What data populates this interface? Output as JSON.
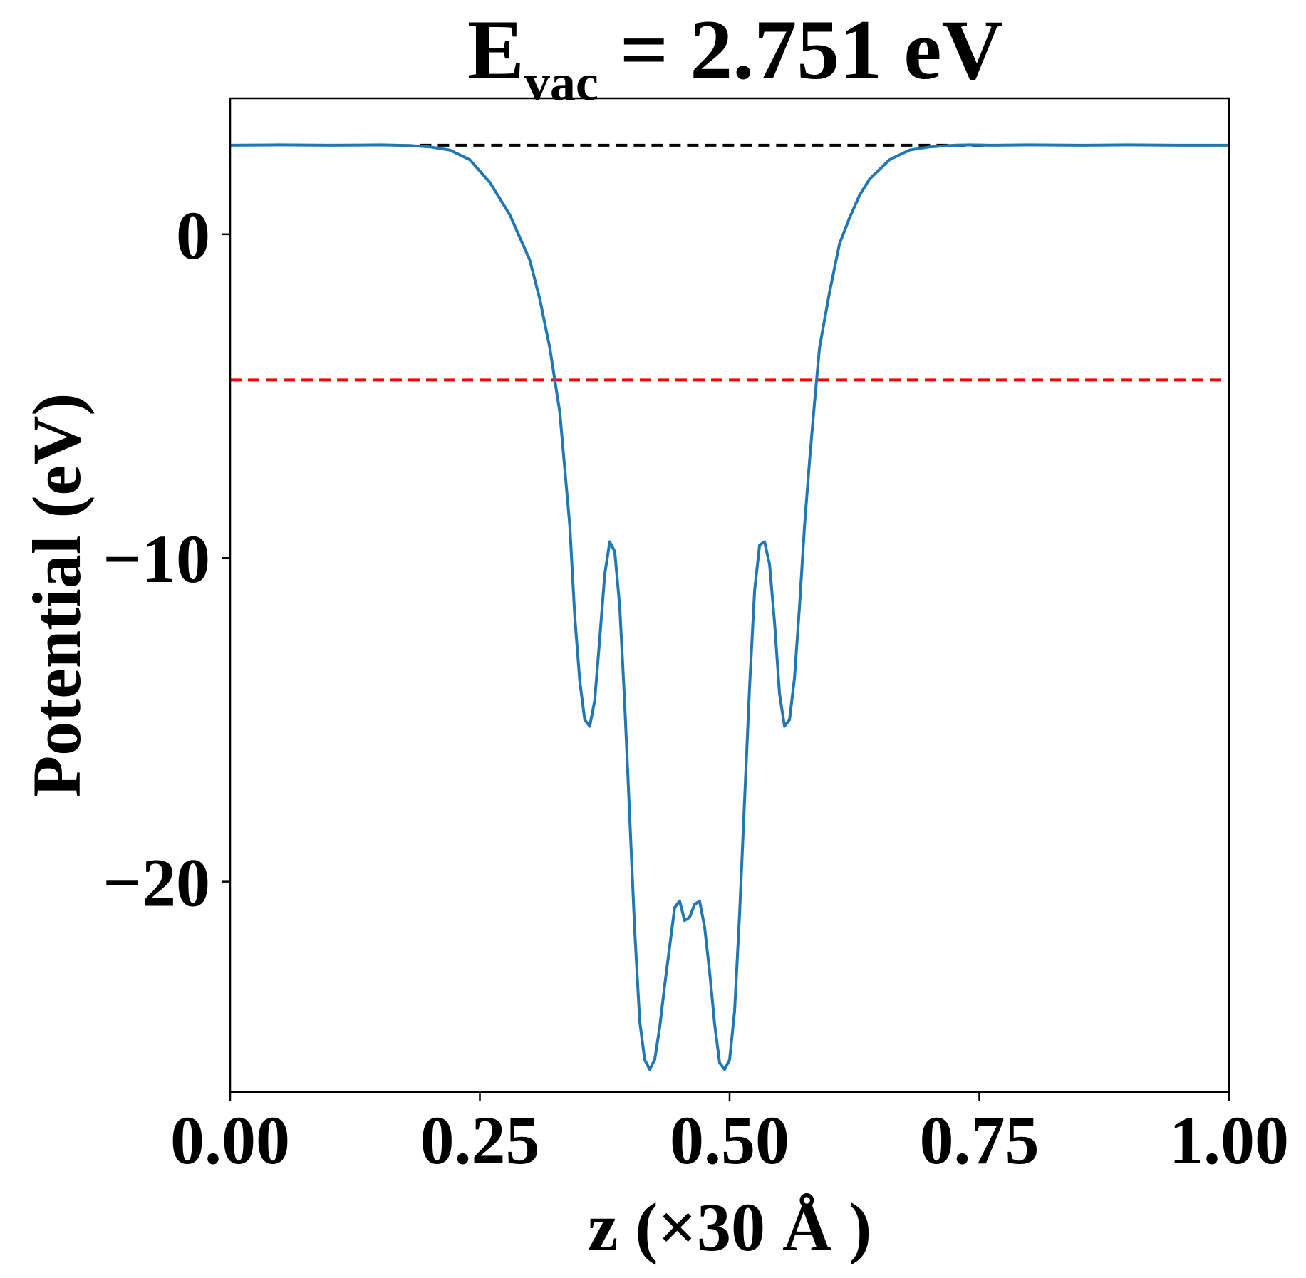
{
  "chart_data": {
    "type": "line",
    "title": {
      "main": "E",
      "subscript": "vac",
      "rest": " = 2.751 eV"
    },
    "xlabel": "z (×30 Å )",
    "ylabel": "Potential (eV)",
    "xlim": [
      0,
      1
    ],
    "ylim": [
      -26.5,
      4.2
    ],
    "grid": false,
    "legend": "none",
    "x_ticks": [
      {
        "value": 0.0,
        "label": "0.00"
      },
      {
        "value": 0.25,
        "label": "0.25"
      },
      {
        "value": 0.5,
        "label": "0.50"
      },
      {
        "value": 0.75,
        "label": "0.75"
      },
      {
        "value": 1.0,
        "label": "1.00"
      }
    ],
    "y_ticks": [
      {
        "value": 0,
        "label": "0"
      },
      {
        "value": -10,
        "label": "−10"
      },
      {
        "value": -20,
        "label": "−20"
      }
    ],
    "reference_lines": [
      {
        "y": 2.751,
        "color": "#000000",
        "style": "dashed",
        "x_start": 0.19,
        "x_end": 0.76
      },
      {
        "y": -4.5,
        "color": "#ff0000",
        "style": "dashed",
        "x_start": 0.0,
        "x_end": 1.0
      }
    ],
    "series": [
      {
        "color": "#1f77b4",
        "x": [
          0.0,
          0.05,
          0.1,
          0.15,
          0.18,
          0.2,
          0.22,
          0.24,
          0.26,
          0.28,
          0.3,
          0.31,
          0.32,
          0.33,
          0.34,
          0.345,
          0.35,
          0.355,
          0.36,
          0.365,
          0.37,
          0.375,
          0.38,
          0.385,
          0.39,
          0.395,
          0.4,
          0.405,
          0.41,
          0.415,
          0.42,
          0.425,
          0.43,
          0.435,
          0.44,
          0.445,
          0.45,
          0.455,
          0.46,
          0.465,
          0.47,
          0.475,
          0.48,
          0.485,
          0.49,
          0.495,
          0.5,
          0.505,
          0.51,
          0.515,
          0.52,
          0.525,
          0.53,
          0.535,
          0.54,
          0.545,
          0.55,
          0.555,
          0.56,
          0.565,
          0.57,
          0.575,
          0.58,
          0.585,
          0.59,
          0.6,
          0.61,
          0.62,
          0.63,
          0.64,
          0.66,
          0.68,
          0.7,
          0.72,
          0.74,
          0.76,
          0.8,
          0.85,
          0.9,
          0.95,
          1.0
        ],
        "y": [
          2.75,
          2.76,
          2.75,
          2.76,
          2.74,
          2.7,
          2.6,
          2.3,
          1.6,
          0.6,
          -0.8,
          -2.0,
          -3.5,
          -5.5,
          -9.0,
          -11.8,
          -13.8,
          -15.0,
          -15.2,
          -14.4,
          -12.5,
          -10.5,
          -9.5,
          -9.8,
          -11.5,
          -14.5,
          -18.0,
          -21.5,
          -24.3,
          -25.5,
          -25.8,
          -25.5,
          -24.5,
          -23.2,
          -22.0,
          -20.8,
          -20.6,
          -21.2,
          -21.1,
          -20.7,
          -20.6,
          -21.4,
          -22.8,
          -24.4,
          -25.6,
          -25.8,
          -25.5,
          -24.0,
          -21.0,
          -17.5,
          -14.0,
          -11.0,
          -9.6,
          -9.5,
          -10.2,
          -12.0,
          -14.2,
          -15.2,
          -15.0,
          -13.7,
          -11.5,
          -9.0,
          -7.0,
          -5.2,
          -3.5,
          -1.8,
          -0.3,
          0.5,
          1.2,
          1.7,
          2.3,
          2.6,
          2.7,
          2.74,
          2.76,
          2.75,
          2.76,
          2.75,
          2.76,
          2.75,
          2.75
        ]
      }
    ]
  }
}
